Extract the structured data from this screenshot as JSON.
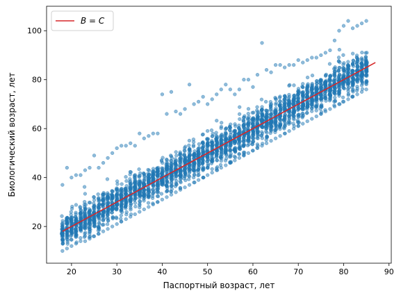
{
  "chart_data": {
    "type": "scatter",
    "title": "",
    "xlabel": "Паспортный возраст, лет",
    "ylabel": "Биологический возраст, лет",
    "xlim": [
      14.5,
      90.5
    ],
    "ylim": [
      5,
      110
    ],
    "xticks": [
      20,
      30,
      40,
      50,
      60,
      70,
      80,
      90
    ],
    "yticks": [
      20,
      40,
      60,
      80,
      100
    ],
    "grid": false,
    "legend": {
      "position": "top-left",
      "entries": [
        "B = C"
      ]
    },
    "series": [
      {
        "kind": "scatter",
        "color": "#1f77b4",
        "x_range": [
          18,
          85
        ],
        "ages": [
          18,
          19,
          20,
          21,
          22,
          23,
          24,
          25,
          26,
          27,
          28,
          29,
          30,
          31,
          32,
          33,
          34,
          35,
          36,
          37,
          38,
          39,
          40,
          41,
          42,
          43,
          44,
          45,
          46,
          47,
          48,
          49,
          50,
          51,
          52,
          53,
          54,
          55,
          56,
          57,
          58,
          59,
          60,
          61,
          62,
          63,
          64,
          65,
          66,
          67,
          68,
          69,
          70,
          71,
          72,
          73,
          74,
          75,
          76,
          77,
          78,
          79,
          80,
          81,
          82,
          83,
          84,
          85
        ],
        "band_min": [
          10,
          11,
          12,
          13,
          14,
          14,
          15,
          16,
          17,
          18,
          19,
          20,
          21,
          22,
          23,
          24,
          25,
          26,
          27,
          28,
          29,
          30,
          31,
          32,
          33,
          34,
          35,
          36,
          37,
          38,
          39,
          40,
          41,
          42,
          43,
          44,
          45,
          46,
          47,
          48,
          49,
          50,
          51,
          52,
          53,
          54,
          55,
          56,
          57,
          58,
          59,
          60,
          61,
          62,
          63,
          64,
          65,
          66,
          67,
          68,
          69,
          70,
          71,
          72,
          73,
          74,
          75,
          76
        ],
        "band_max": [
          37,
          44,
          40,
          41,
          41,
          43,
          44,
          49,
          44,
          46,
          48,
          50,
          52,
          53,
          53,
          54,
          53,
          58,
          56,
          57,
          58,
          58,
          74,
          66,
          75,
          67,
          66,
          68,
          78,
          70,
          71,
          73,
          70,
          72,
          74,
          76,
          78,
          76,
          74,
          76,
          80,
          80,
          77,
          82,
          95,
          84,
          83,
          86,
          86,
          85,
          86,
          86,
          88,
          87,
          88,
          89,
          89,
          90,
          91,
          92,
          96,
          100,
          102,
          104,
          101,
          102,
          103,
          104
        ]
      },
      {
        "kind": "line",
        "name": "B = C",
        "color": "#d62728",
        "x": [
          18,
          87
        ],
        "y": [
          18,
          87
        ]
      }
    ]
  }
}
